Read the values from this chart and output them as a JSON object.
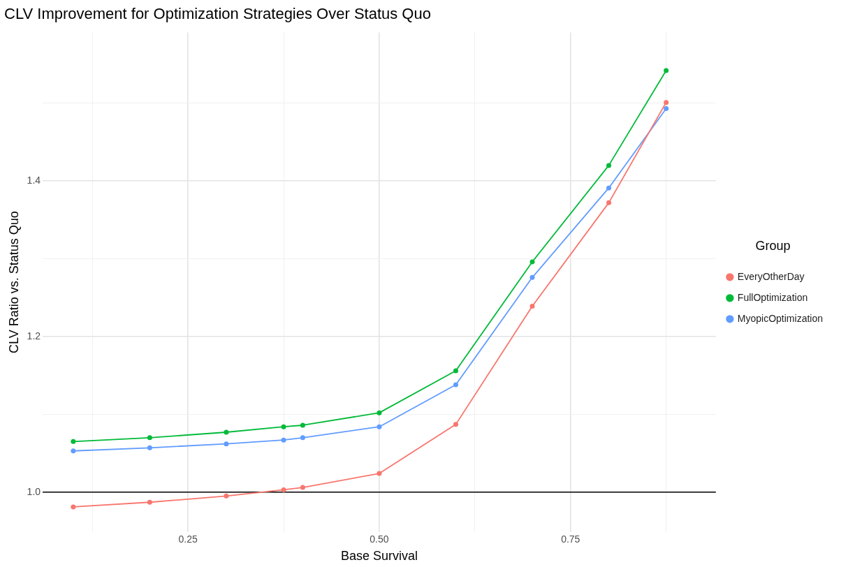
{
  "chart_data": {
    "type": "line",
    "title": "CLV Improvement for Optimization Strategies Over Status Quo",
    "xlabel": "Base Survival",
    "ylabel": "CLV Ratio vs. Status Quo",
    "legend_title": "Group",
    "x": [
      0.1,
      0.2,
      0.3,
      0.375,
      0.4,
      0.5,
      0.6,
      0.7,
      0.8,
      0.875
    ],
    "series": [
      {
        "name": "EveryOtherDay",
        "color": "#f8766d",
        "values": [
          0.981,
          0.987,
          0.995,
          1.003,
          1.006,
          1.024,
          1.087,
          1.239,
          1.372,
          1.501
        ]
      },
      {
        "name": "FullOptimization",
        "color": "#00ba38",
        "values": [
          1.065,
          1.07,
          1.077,
          1.084,
          1.086,
          1.102,
          1.156,
          1.296,
          1.42,
          1.542
        ]
      },
      {
        "name": "MyopicOptimization",
        "color": "#619cff",
        "values": [
          1.053,
          1.057,
          1.062,
          1.067,
          1.07,
          1.084,
          1.138,
          1.276,
          1.391,
          1.493
        ]
      }
    ],
    "xlim": [
      0.06,
      0.94
    ],
    "ylim": [
      0.949,
      1.591
    ],
    "xticks": [
      {
        "value": 0.125,
        "label": null
      },
      {
        "value": 0.25,
        "label": "0.25"
      },
      {
        "value": 0.375,
        "label": null
      },
      {
        "value": 0.5,
        "label": "0.50"
      },
      {
        "value": 0.625,
        "label": null
      },
      {
        "value": 0.75,
        "label": "0.75"
      },
      {
        "value": 0.875,
        "label": null
      }
    ],
    "yticks": [
      {
        "value": 1.0,
        "label": "1.0"
      },
      {
        "value": 1.1,
        "label": null
      },
      {
        "value": 1.2,
        "label": "1.2"
      },
      {
        "value": 1.3,
        "label": null
      },
      {
        "value": 1.4,
        "label": "1.4"
      },
      {
        "value": 1.5,
        "label": null
      }
    ],
    "ref_lines": [
      {
        "axis": "y",
        "value": 1,
        "color": "#000000"
      }
    ],
    "grid": true,
    "legend": "right",
    "marker": "circle",
    "line_style": "solid"
  }
}
